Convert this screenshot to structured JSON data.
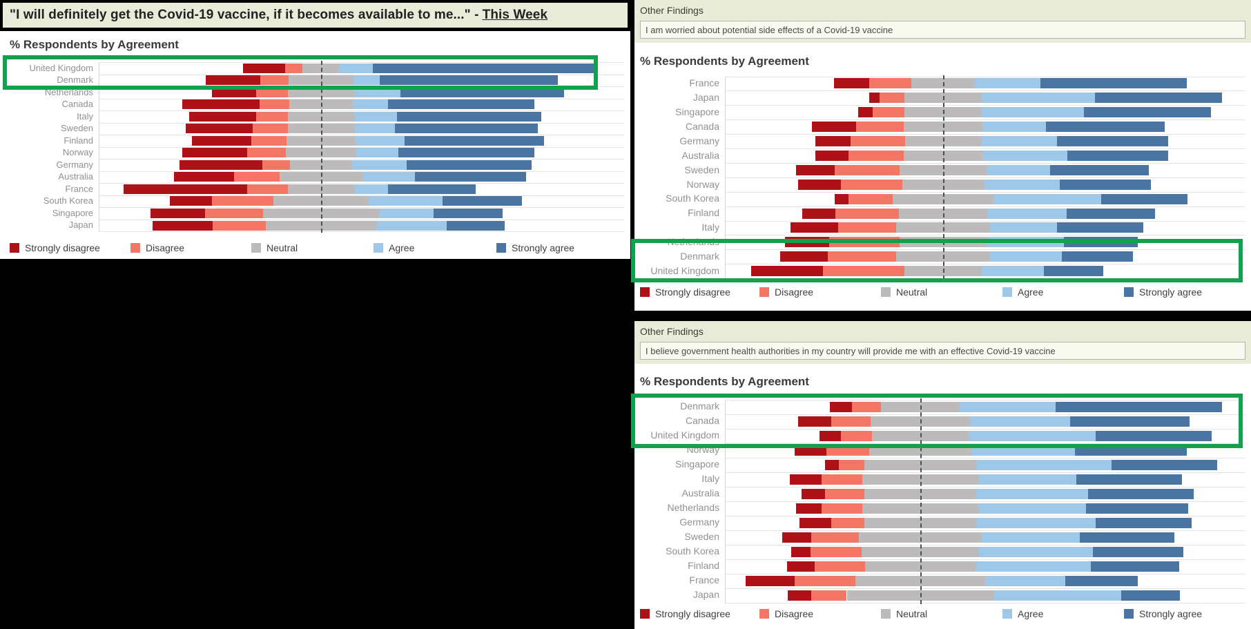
{
  "legend": [
    "Strongly disagree",
    "Disagree",
    "Neutral",
    "Agree",
    "Strongly agree"
  ],
  "colors": {
    "strongly_disagree": "#ae1117",
    "disagree": "#f47765",
    "neutral": "#bcbaba",
    "agree": "#9fc8e8",
    "strongly_agree": "#4a74a1",
    "highlight_box": "#12a24d",
    "header_bg": "#e8ecd9",
    "select_bg": "#f8faef",
    "panel_bg": "#ffffff",
    "page_bg": "#000000"
  },
  "chart_data": [
    {
      "id": "main",
      "type": "bar",
      "variant": "diverging-stacked-likert",
      "title_text": "\"I will definitely get the Covid-19 vaccine, if it becomes available to me...\" - ",
      "title_period": "This Week",
      "subtitle": "% Respondents by Agreement",
      "legend_position": "bottom",
      "grid": false,
      "axis_note": "dashed reference line at midpoint of Neutral",
      "categories": [
        "United Kingdom",
        "Denmark",
        "Netherlands",
        "Canada",
        "Italy",
        "Sweden",
        "Finland",
        "Norway",
        "Germany",
        "Australia",
        "France",
        "South Korea",
        "Singapore",
        "Japan"
      ],
      "series": [
        {
          "name": "Strongly disagree",
          "values": [
            12,
            15.5,
            12.5,
            22,
            19,
            19,
            17,
            18.5,
            23.5,
            17,
            35,
            12,
            15.5,
            17
          ]
        },
        {
          "name": "Disagree",
          "values": [
            5,
            8,
            9,
            8.5,
            9,
            10,
            10,
            11,
            8,
            13,
            11.5,
            17.5,
            16.5,
            15
          ]
        },
        {
          "name": "Neutral",
          "values": [
            10.5,
            18.5,
            19,
            18,
            19,
            19,
            19.5,
            20,
            17.5,
            23.5,
            19,
            27,
            33,
            31.5
          ]
        },
        {
          "name": "Agree",
          "values": [
            9.5,
            7.5,
            13,
            10,
            12,
            11.5,
            14,
            12,
            15.5,
            15,
            9.5,
            21,
            15.5,
            20
          ]
        },
        {
          "name": "Strongly agree",
          "values": [
            63,
            50.5,
            46.5,
            41.5,
            41,
            40.5,
            39.5,
            38.5,
            35.5,
            31.5,
            25,
            22.5,
            19.5,
            16.5
          ]
        }
      ],
      "highlighted_countries": [
        "United Kingdom",
        "Denmark"
      ]
    },
    {
      "id": "worried",
      "type": "bar",
      "variant": "diverging-stacked-likert",
      "header": "Other Findings",
      "question": "I am worried about potential side effects of a Covid-19 vaccine",
      "subtitle": "% Respondents by Agreement",
      "legend_position": "bottom",
      "grid": false,
      "axis_note": "dashed reference line at midpoint of Neutral",
      "categories": [
        "France",
        "Japan",
        "Singapore",
        "Canada",
        "Germany",
        "Australia",
        "Sweden",
        "Norway",
        "South Korea",
        "Finland",
        "Italy",
        "Netherlands",
        "Denmark",
        "United Kingdom"
      ],
      "series": [
        {
          "name": "Strongly disagree",
          "values": [
            10,
            3,
            4,
            12.5,
            10,
            9.5,
            11,
            12,
            4,
            9.5,
            13.5,
            12.5,
            13.5,
            20.5
          ]
        },
        {
          "name": "Disagree",
          "values": [
            12,
            7,
            9,
            13.5,
            15.5,
            15.5,
            18.5,
            17.5,
            12.5,
            18,
            16.5,
            20,
            19.5,
            23
          ]
        },
        {
          "name": "Neutral",
          "values": [
            18,
            22,
            22,
            22.5,
            21.5,
            22.5,
            24.5,
            23,
            28.5,
            25,
            26.5,
            24.5,
            26.5,
            22
          ]
        },
        {
          "name": "Agree",
          "values": [
            18.5,
            32,
            29,
            18,
            21.5,
            24,
            18,
            21.5,
            30.5,
            22.5,
            19,
            22,
            20.5,
            17.5
          ]
        },
        {
          "name": "Strongly agree",
          "values": [
            41.5,
            36,
            36,
            33.5,
            31.5,
            28.5,
            28,
            26,
            24.5,
            25,
            24.5,
            21,
            20,
            17
          ]
        }
      ],
      "highlighted_countries": [
        "Netherlands",
        "Denmark",
        "United Kingdom"
      ]
    },
    {
      "id": "gov",
      "type": "bar",
      "variant": "diverging-stacked-likert",
      "header": "Other Findings",
      "question": "I believe government health authorities in my country will provide me with an effective Covid-19 vaccine",
      "subtitle": "% Respondents by Agreement",
      "legend_position": "bottom",
      "grid": false,
      "axis_note": "dashed reference line at midpoint of Neutral",
      "categories": [
        "Denmark",
        "Canada",
        "United Kingdom",
        "Norway",
        "Singapore",
        "Italy",
        "Australia",
        "Netherlands",
        "Germany",
        "Sweden",
        "South Korea",
        "Finland",
        "France",
        "Japan"
      ],
      "series": [
        {
          "name": "Strongly disagree",
          "values": [
            5.5,
            8.5,
            5.5,
            8,
            3.5,
            8,
            6,
            6.5,
            8,
            7.5,
            5,
            7,
            12.5,
            6
          ]
        },
        {
          "name": "Disagree",
          "values": [
            7.5,
            10,
            8,
            11,
            6.5,
            10.5,
            10,
            10.5,
            8.5,
            12,
            13,
            13,
            15.5,
            9
          ]
        },
        {
          "name": "Neutral",
          "values": [
            20,
            25.5,
            24.5,
            26,
            28.5,
            29.5,
            28.5,
            29.5,
            28.5,
            31.5,
            30,
            28,
            33,
            37.5
          ]
        },
        {
          "name": "Agree",
          "values": [
            24.5,
            25.5,
            32.5,
            26.5,
            34.5,
            25,
            28.5,
            27.5,
            30.5,
            25,
            29,
            29.5,
            20.5,
            32.5
          ]
        },
        {
          "name": "Strongly agree",
          "values": [
            42.5,
            30.5,
            29.5,
            28.5,
            27,
            27,
            27,
            26,
            24.5,
            24,
            23,
            22.5,
            18.5,
            15
          ]
        }
      ],
      "highlighted_countries": [
        "Denmark",
        "Canada",
        "United Kingdom"
      ]
    }
  ]
}
